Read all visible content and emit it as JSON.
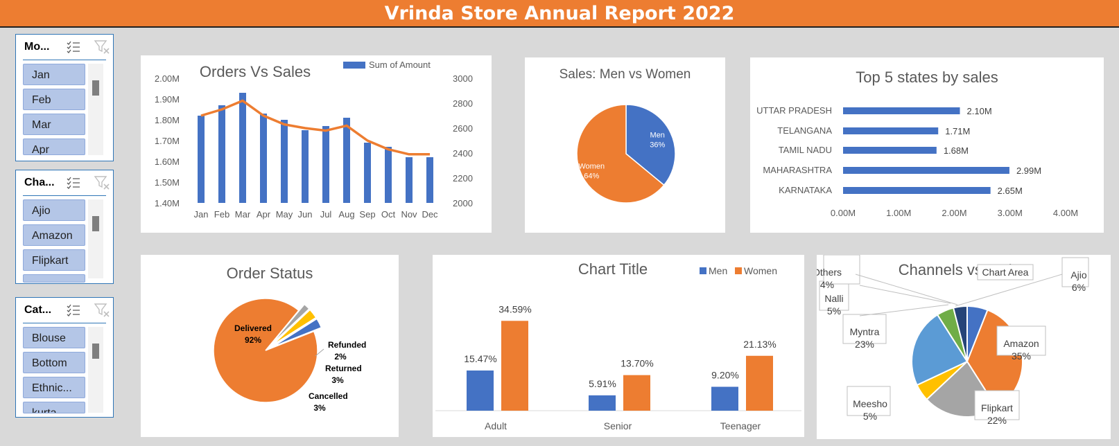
{
  "header": {
    "title": "Vrinda Store Annual Report 2022"
  },
  "colors": {
    "banner": "#ed7d31",
    "blue": "#4472c4",
    "orange": "#ed7d31",
    "slicer_item": "#b4c6e7"
  },
  "slicers": [
    {
      "title": "Mo...",
      "items": [
        "Jan",
        "Feb",
        "Mar",
        "Apr"
      ]
    },
    {
      "title": "Cha...",
      "items": [
        "Ajio",
        "Amazon",
        "Flipkart"
      ]
    },
    {
      "title": "Cat...",
      "items": [
        "Blouse",
        "Bottom",
        "Ethnic...",
        "kurta"
      ]
    }
  ],
  "icons": {
    "multiselect": "multi-select-icon",
    "clear_filter": "clear-filter-icon"
  },
  "charts": {
    "orders_sales": {
      "title": "Orders Vs Sales",
      "legend": "Sum of Amount",
      "chart_type": "combo bar + line (secondary axis)",
      "categories": [
        "Jan",
        "Feb",
        "Mar",
        "Apr",
        "May",
        "Jun",
        "Jul",
        "Aug",
        "Sep",
        "Oct",
        "Nov",
        "Dec"
      ],
      "bar_values": [
        1.82,
        1.87,
        1.93,
        1.83,
        1.8,
        1.75,
        1.77,
        1.81,
        1.69,
        1.67,
        1.62,
        1.62
      ],
      "line_values": [
        2700,
        2750,
        2820,
        2700,
        2630,
        2600,
        2580,
        2620,
        2500,
        2430,
        2390,
        2390
      ],
      "y_ticks": [
        "2.00M",
        "1.90M",
        "1.80M",
        "1.70M",
        "1.60M",
        "1.50M",
        "1.40M"
      ],
      "y2_ticks": [
        "3000",
        "2800",
        "2600",
        "2400",
        "2200",
        "2000"
      ],
      "ylim": [
        1.4,
        2.0
      ],
      "y2lim": [
        2000,
        3000
      ]
    },
    "men_women": {
      "title": "Sales: Men vs Women",
      "chart_type": "pie",
      "slices": [
        {
          "label": "Men",
          "pct_label": "36%",
          "value": 36
        },
        {
          "label": "Women",
          "pct_label": "64%",
          "value": 64
        }
      ]
    },
    "top_states": {
      "title": "Top 5 states by sales",
      "chart_type": "horizontal bar",
      "categories": [
        "UTTAR PRADESH",
        "TELANGANA",
        "TAMIL NADU",
        "MAHARASHTRA",
        "KARNATAKA"
      ],
      "values": [
        2.1,
        1.71,
        1.68,
        2.99,
        2.65
      ],
      "labels": [
        "2.10M",
        "1.71M",
        "1.68M",
        "2.99M",
        "2.65M"
      ],
      "x_ticks": [
        "0.00M",
        "1.00M",
        "2.00M",
        "3.00M",
        "4.00M"
      ],
      "xlim": [
        0,
        4
      ]
    },
    "order_status": {
      "title": "Order Status",
      "chart_type": "pie (exploded)",
      "slices": [
        {
          "label": "Delivered",
          "pct_label": "92%",
          "value": 92
        },
        {
          "label": "Refunded",
          "pct_label": "2%",
          "value": 2
        },
        {
          "label": "Returned",
          "pct_label": "3%",
          "value": 3
        },
        {
          "label": "Cancelled",
          "pct_label": "3%",
          "value": 3
        }
      ]
    },
    "age_gender": {
      "title": "Chart Title",
      "chart_type": "clustered bar",
      "categories": [
        "Adult",
        "Senior",
        "Teenager"
      ],
      "series": [
        {
          "name": "Men",
          "values": [
            15.47,
            5.91,
            9.2
          ],
          "labels": [
            "15.47%",
            "5.91%",
            "9.20%"
          ]
        },
        {
          "name": "Women",
          "values": [
            34.59,
            13.7,
            21.13
          ],
          "labels": [
            "34.59%",
            "13.70%",
            "21.13%"
          ]
        }
      ],
      "ylim": [
        0,
        40
      ]
    },
    "channels": {
      "title": "Channels vs Orders",
      "tooltip": "Chart Area",
      "chart_type": "pie",
      "slices": [
        {
          "label": "Ajio",
          "pct_label": "6%",
          "value": 6
        },
        {
          "label": "Amazon",
          "pct_label": "35%",
          "value": 35
        },
        {
          "label": "Flipkart",
          "pct_label": "22%",
          "value": 22
        },
        {
          "label": "Meesho",
          "pct_label": "5%",
          "value": 5
        },
        {
          "label": "Myntra",
          "pct_label": "23%",
          "value": 23
        },
        {
          "label": "Nalli",
          "pct_label": "5%",
          "value": 5
        },
        {
          "label": "Others",
          "pct_label": "4%",
          "value": 4
        }
      ]
    }
  }
}
